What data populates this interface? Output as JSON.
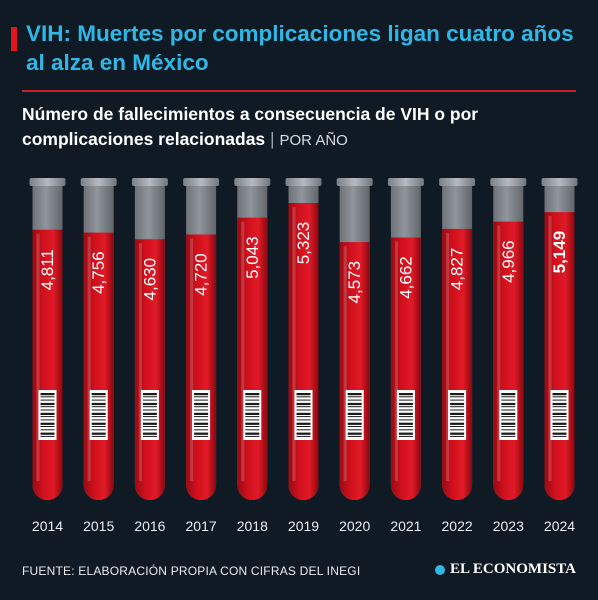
{
  "header": {
    "title": "VIH: Muertes por complicaciones ligan cuatro años al alza en México",
    "subtitle": "Número de fallecimientos a consecuencia de VIH o por complicaciones relacionadas",
    "separator": "|",
    "unit": "POR AÑO"
  },
  "colors": {
    "background": "#0f1a24",
    "headline": "#2fb8e6",
    "accent": "#e0161e",
    "blood": "#d0101c",
    "glass": "#8f959a"
  },
  "chart_data": {
    "type": "bar",
    "categories": [
      "2014",
      "2015",
      "2016",
      "2017",
      "2018",
      "2019",
      "2020",
      "2021",
      "2022",
      "2023",
      "2024"
    ],
    "values": [
      4811,
      4756,
      4630,
      4720,
      5043,
      5323,
      4573,
      4662,
      4827,
      4966,
      5149
    ],
    "value_labels": [
      "4,811",
      "4,756",
      "4,630",
      "4,720",
      "5,043",
      "5,323",
      "4,573",
      "4,662",
      "4,827",
      "4,966",
      "5,149"
    ],
    "highlight_category": "2024"
  },
  "footer": {
    "source": "FUENTE: ELABORACIÓN PROPIA CON CIFRAS DEL INEGI",
    "brand": "EL ECONOMISTA",
    "brand_icon": "globe-icon"
  }
}
